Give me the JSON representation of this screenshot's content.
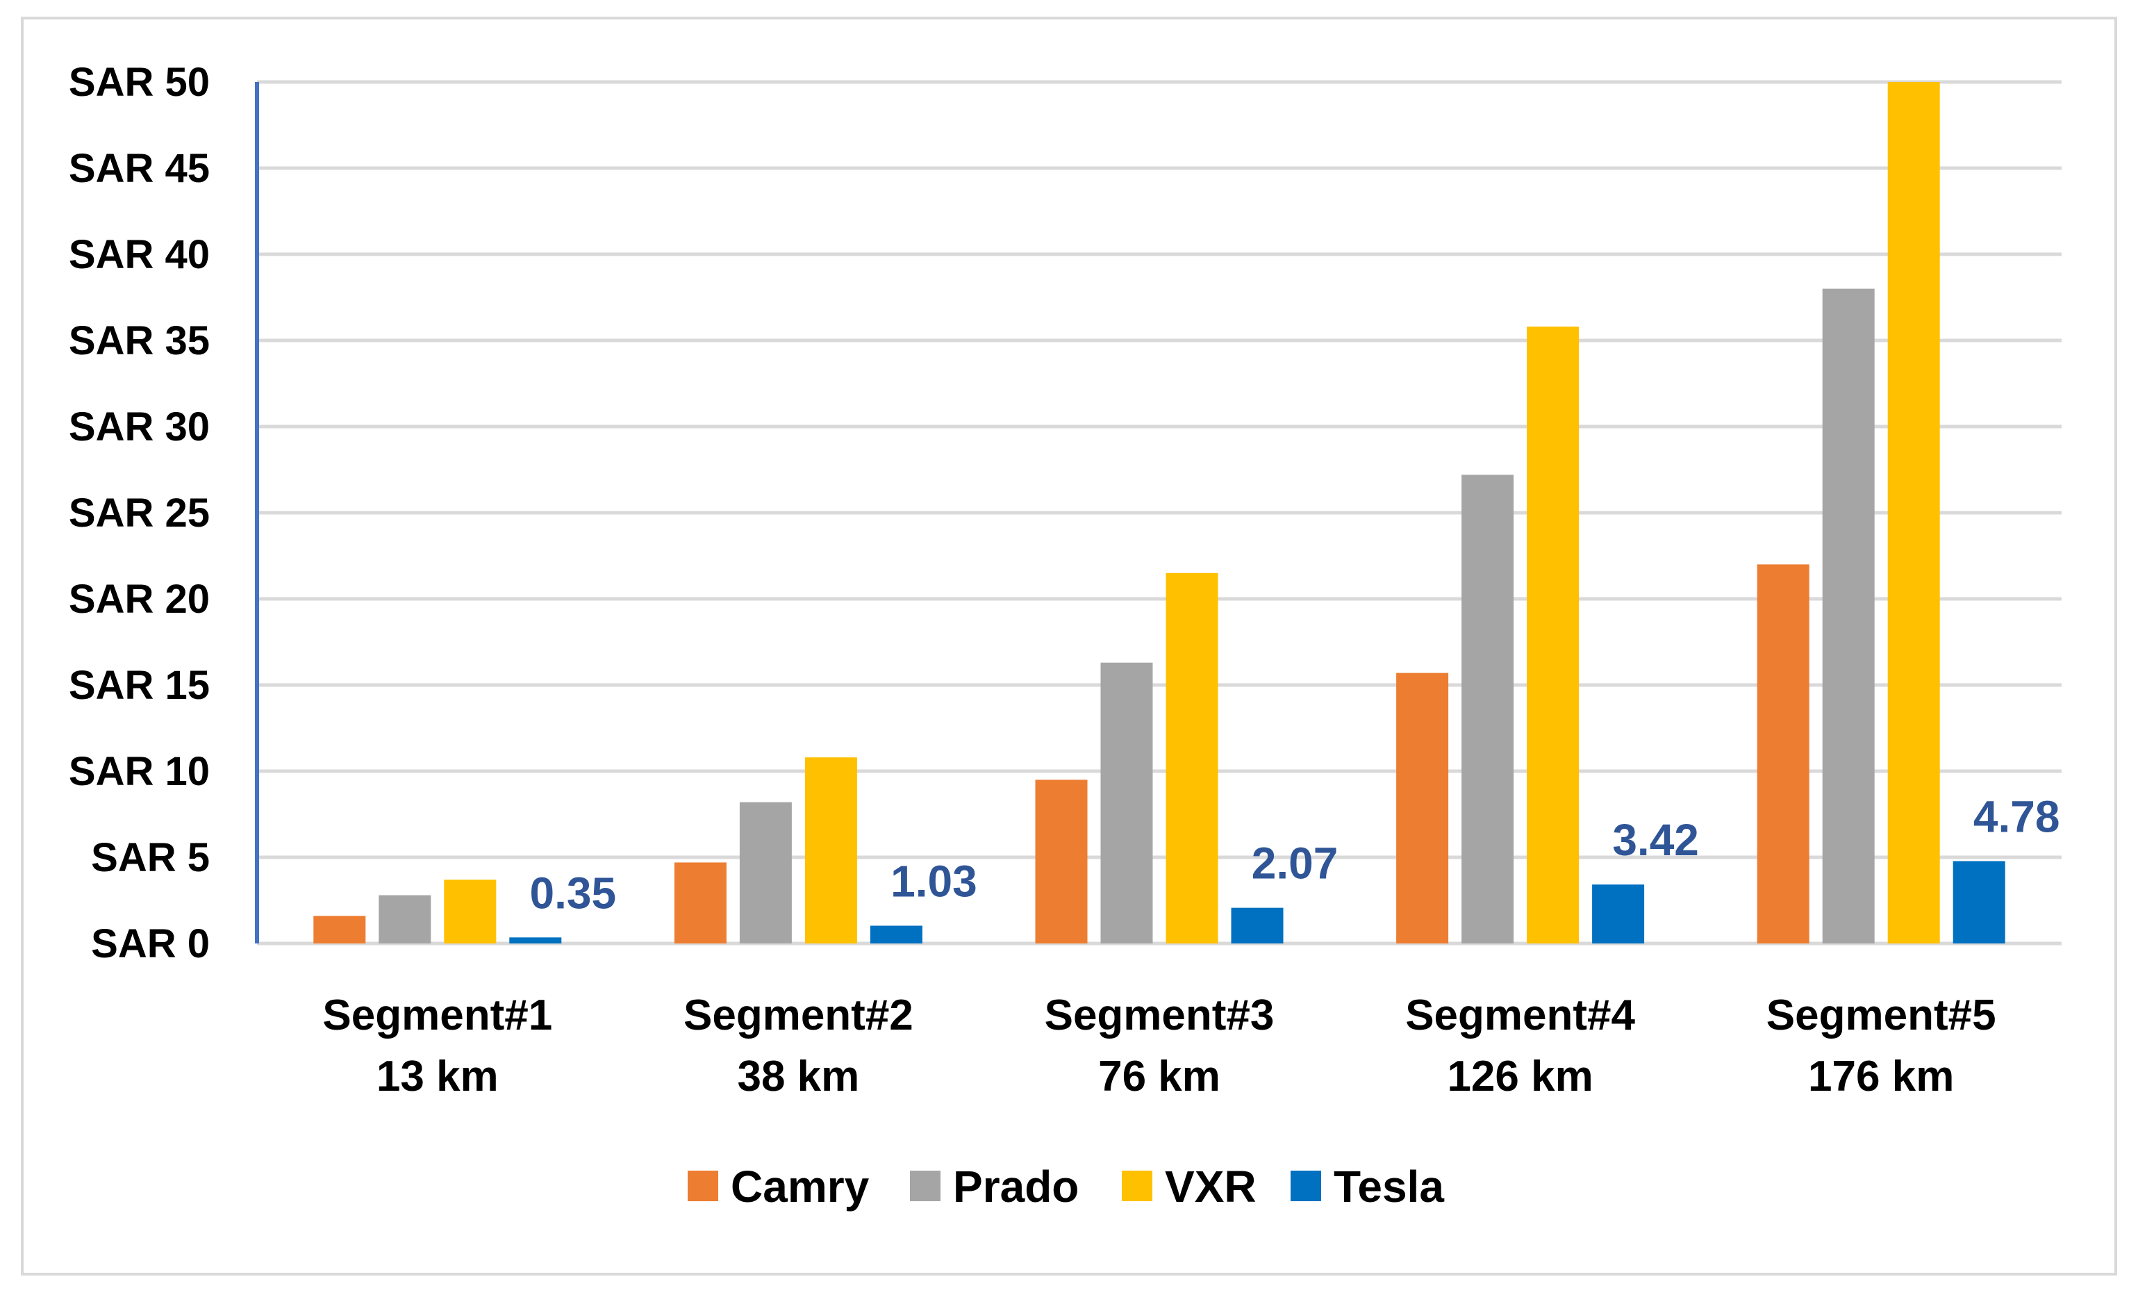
{
  "chart_data": {
    "type": "bar",
    "title": "",
    "xlabel": "",
    "ylabel": "",
    "ylim": [
      0,
      50
    ],
    "yticks": [
      0,
      5,
      10,
      15,
      20,
      25,
      30,
      35,
      40,
      45,
      50
    ],
    "ytick_labels": [
      "SAR 0",
      "SAR 5",
      "SAR 10",
      "SAR 15",
      "SAR 20",
      "SAR 25",
      "SAR 30",
      "SAR 35",
      "SAR 40",
      "SAR 45",
      "SAR 50"
    ],
    "categories": [
      {
        "line1": "Segment#1",
        "line2": "13 km"
      },
      {
        "line1": "Segment#2",
        "line2": "38 km"
      },
      {
        "line1": "Segment#3",
        "line2": "76 km"
      },
      {
        "line1": "Segment#4",
        "line2": "126 km"
      },
      {
        "line1": "Segment#5",
        "line2": "176 km"
      }
    ],
    "grid": true,
    "legend_position": "bottom",
    "series": [
      {
        "name": "Camry",
        "color": "#ED7D31",
        "values": [
          1.6,
          4.7,
          9.5,
          15.7,
          22.0
        ]
      },
      {
        "name": "Prado",
        "color": "#A5A5A5",
        "values": [
          2.8,
          8.2,
          16.3,
          27.2,
          38.0
        ]
      },
      {
        "name": "VXR",
        "color": "#FFC000",
        "values": [
          3.7,
          10.8,
          21.5,
          35.8,
          50.0
        ]
      },
      {
        "name": "Tesla",
        "color": "#0070C0",
        "values": [
          0.35,
          1.03,
          2.07,
          3.42,
          4.78
        ],
        "data_labels": [
          "0.35",
          "1.03",
          "2.07",
          "3.42",
          "4.78"
        ],
        "data_label_color": "#2F5597"
      }
    ],
    "axis_line_color": "#4472C4",
    "grid_color": "#d9d9d9"
  }
}
